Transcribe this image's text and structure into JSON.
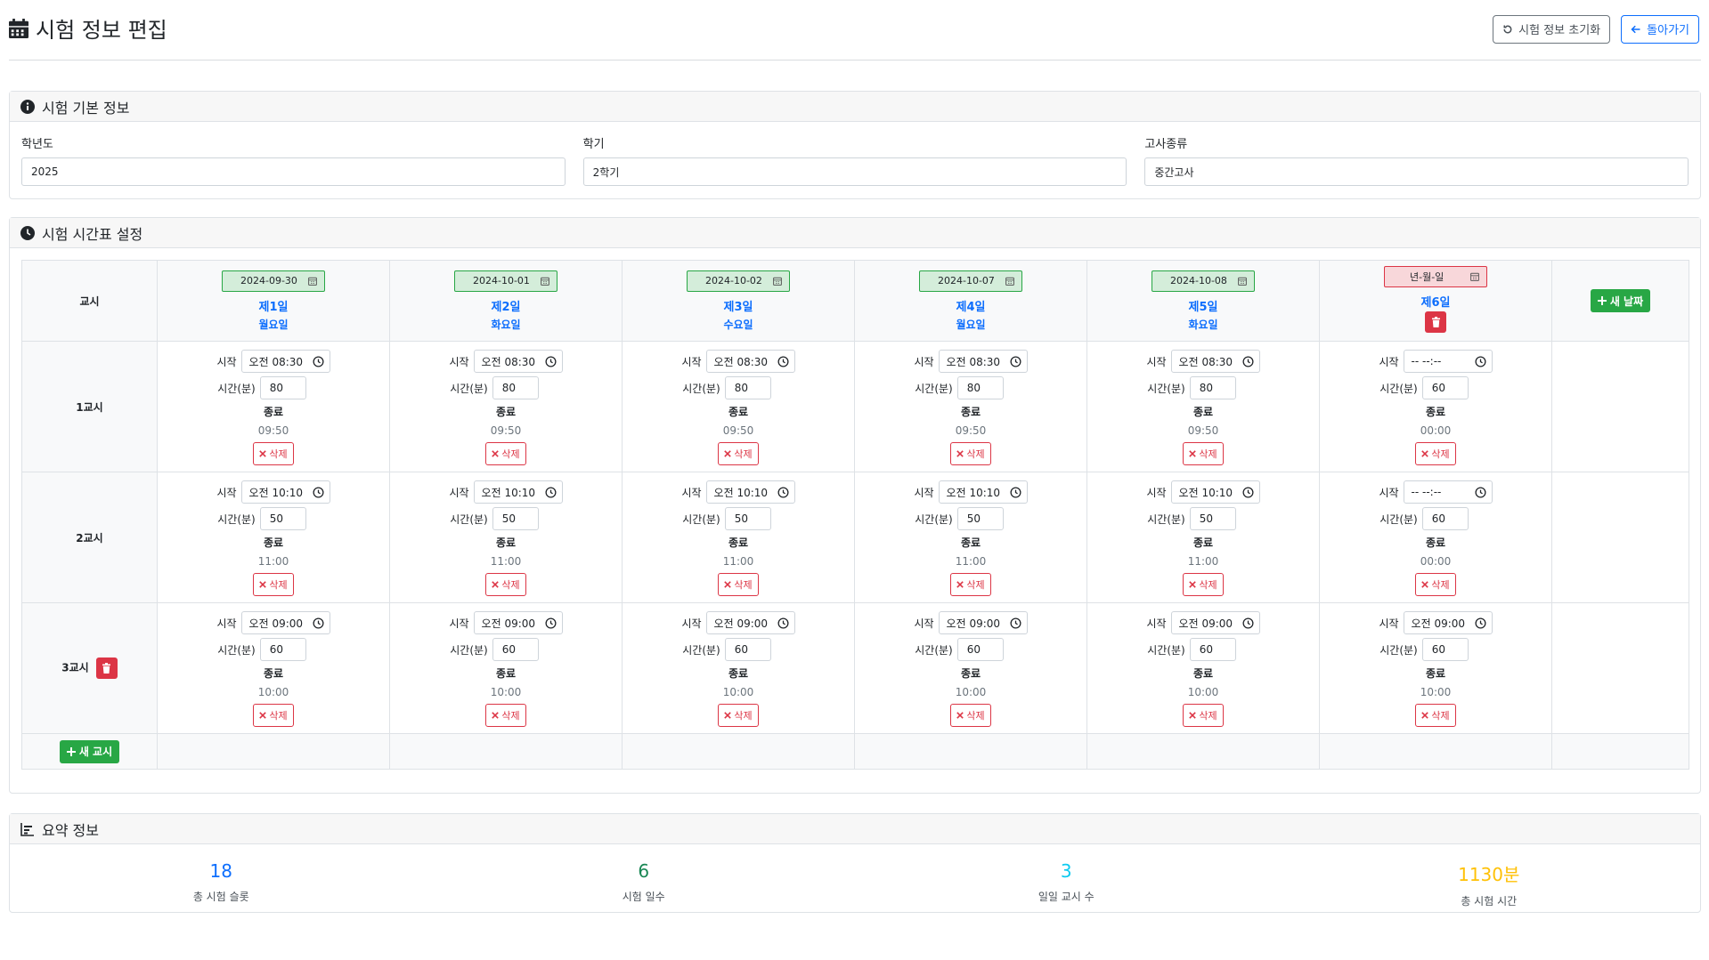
{
  "header": {
    "title": "시험 정보 편집",
    "reset_label": "시험 정보 초기화",
    "back_label": "돌아가기"
  },
  "basic": {
    "title": "시험 기본 정보",
    "fields": [
      {
        "label": "학년도",
        "value": "2025"
      },
      {
        "label": "학기",
        "value": "2학기"
      },
      {
        "label": "고사종류",
        "value": "중간고사"
      }
    ]
  },
  "schedule": {
    "title": "시험 시간표 설정",
    "period_header": "교시",
    "new_day_label": "새 날짜",
    "new_period_label": "새 교시",
    "labels": {
      "start": "시작",
      "duration": "시간(분)",
      "end": "종료",
      "delete": "삭제"
    },
    "days": [
      {
        "date": "2024-09-30",
        "name": "제1일",
        "weekday": "월요일",
        "empty": false
      },
      {
        "date": "2024-10-01",
        "name": "제2일",
        "weekday": "화요일",
        "empty": false
      },
      {
        "date": "2024-10-02",
        "name": "제3일",
        "weekday": "수요일",
        "empty": false
      },
      {
        "date": "2024-10-07",
        "name": "제4일",
        "weekday": "월요일",
        "empty": false
      },
      {
        "date": "2024-10-08",
        "name": "제5일",
        "weekday": "화요일",
        "empty": false
      },
      {
        "date": "년-월-일",
        "name": "제6일",
        "weekday": "",
        "empty": true
      }
    ],
    "periods": [
      {
        "label": "1교시",
        "slots": [
          {
            "start": "오전 08:30",
            "duration": "80",
            "end": "09:50"
          },
          {
            "start": "오전 08:30",
            "duration": "80",
            "end": "09:50"
          },
          {
            "start": "오전 08:30",
            "duration": "80",
            "end": "09:50"
          },
          {
            "start": "오전 08:30",
            "duration": "80",
            "end": "09:50"
          },
          {
            "start": "오전 08:30",
            "duration": "80",
            "end": "09:50"
          },
          {
            "start": "-- --:--",
            "duration": "60",
            "end": "00:00"
          }
        ]
      },
      {
        "label": "2교시",
        "slots": [
          {
            "start": "오전 10:10",
            "duration": "50",
            "end": "11:00"
          },
          {
            "start": "오전 10:10",
            "duration": "50",
            "end": "11:00"
          },
          {
            "start": "오전 10:10",
            "duration": "50",
            "end": "11:00"
          },
          {
            "start": "오전 10:10",
            "duration": "50",
            "end": "11:00"
          },
          {
            "start": "오전 10:10",
            "duration": "50",
            "end": "11:00"
          },
          {
            "start": "-- --:--",
            "duration": "60",
            "end": "00:00"
          }
        ]
      },
      {
        "label": "3교시",
        "slots": [
          {
            "start": "오전 09:00",
            "duration": "60",
            "end": "10:00"
          },
          {
            "start": "오전 09:00",
            "duration": "60",
            "end": "10:00"
          },
          {
            "start": "오전 09:00",
            "duration": "60",
            "end": "10:00"
          },
          {
            "start": "오전 09:00",
            "duration": "60",
            "end": "10:00"
          },
          {
            "start": "오전 09:00",
            "duration": "60",
            "end": "10:00"
          },
          {
            "start": "오전 09:00",
            "duration": "60",
            "end": "10:00"
          }
        ]
      }
    ]
  },
  "summary": {
    "title": "요약 정보",
    "items": [
      {
        "value": "18",
        "label": "총 시험 슬롯",
        "color": "#0d6efd"
      },
      {
        "value": "6",
        "label": "시험 일수",
        "color": "#198754"
      },
      {
        "value": "3",
        "label": "일일 교시 수",
        "color": "#0dcaf0"
      },
      {
        "value": "1130분",
        "label": "총 시험 시간",
        "color": "#ffc107"
      }
    ]
  }
}
